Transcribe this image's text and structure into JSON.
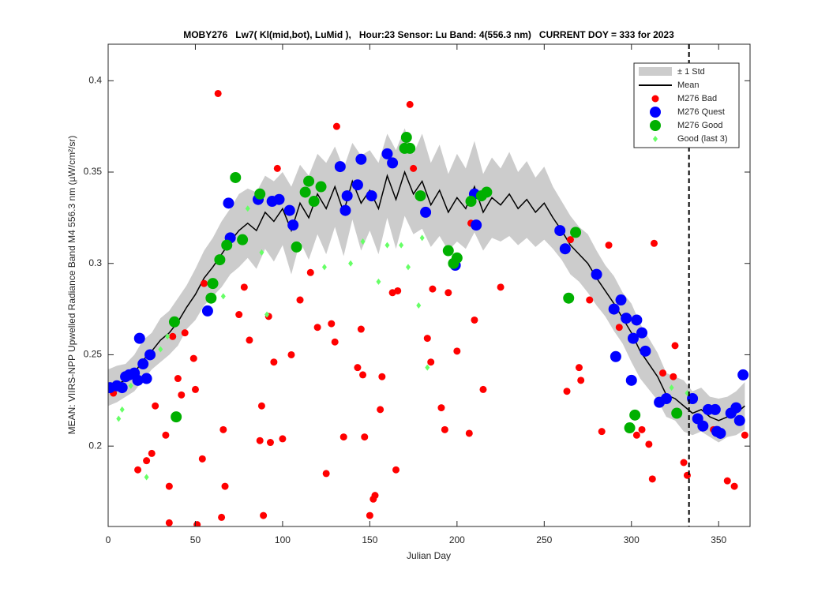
{
  "chart_data": {
    "type": "line",
    "title": "MOBY276   Lw7( Kl(mid,bot), LuMid ),   Hour:23 Sensor: Lu Band: 4(556.3 nm)   CURRENT DOY = 333 for 2023",
    "xlabel": "Julian Day",
    "ylabel": "MEAN: VIIRS-NPP Upwelled Radiance Band M4 556.3 nm (µW/cm²/sr)",
    "xlim": [
      0,
      368
    ],
    "ylim": [
      0.156,
      0.42
    ],
    "xticks": [
      0,
      50,
      100,
      150,
      200,
      250,
      300,
      350
    ],
    "yticks": [
      0.2,
      0.25,
      0.3,
      0.35,
      0.4
    ],
    "vline": 333,
    "legend": "northeast",
    "x": [
      0,
      5,
      10,
      15,
      20,
      25,
      30,
      35,
      40,
      45,
      50,
      55,
      60,
      65,
      70,
      75,
      80,
      85,
      90,
      95,
      100,
      105,
      110,
      115,
      120,
      125,
      130,
      135,
      140,
      145,
      150,
      155,
      160,
      165,
      170,
      175,
      180,
      185,
      190,
      195,
      200,
      205,
      210,
      215,
      220,
      225,
      230,
      235,
      240,
      245,
      250,
      255,
      260,
      265,
      270,
      275,
      280,
      285,
      290,
      295,
      300,
      305,
      310,
      315,
      320,
      325,
      330,
      335,
      340,
      345,
      350,
      355,
      360,
      365
    ],
    "band": {
      "name": "± 1 Std",
      "color": "#cccccc",
      "std": [
        0.01,
        0.01,
        0.009,
        0.01,
        0.011,
        0.01,
        0.012,
        0.012,
        0.013,
        0.012,
        0.014,
        0.015,
        0.016,
        0.018,
        0.018,
        0.02,
        0.019,
        0.021,
        0.02,
        0.022,
        0.02,
        0.024,
        0.021,
        0.023,
        0.022,
        0.025,
        0.022,
        0.024,
        0.021,
        0.026,
        0.022,
        0.025,
        0.023,
        0.027,
        0.024,
        0.022,
        0.026,
        0.023,
        0.025,
        0.021,
        0.024,
        0.022,
        0.025,
        0.021,
        0.022,
        0.02,
        0.023,
        0.02,
        0.021,
        0.019,
        0.02,
        0.017,
        0.016,
        0.016,
        0.015,
        0.016,
        0.015,
        0.014,
        0.015,
        0.014,
        0.016,
        0.015,
        0.014,
        0.013,
        0.012,
        0.012,
        0.014,
        0.012,
        0.012,
        0.011,
        0.012,
        0.011,
        0.012,
        0.013
      ]
    },
    "mean": {
      "name": "Mean",
      "color": "#000000",
      "values": [
        0.232,
        0.234,
        0.236,
        0.24,
        0.247,
        0.252,
        0.258,
        0.262,
        0.268,
        0.276,
        0.283,
        0.292,
        0.298,
        0.305,
        0.312,
        0.318,
        0.322,
        0.318,
        0.328,
        0.323,
        0.33,
        0.318,
        0.333,
        0.325,
        0.338,
        0.33,
        0.342,
        0.328,
        0.345,
        0.333,
        0.34,
        0.33,
        0.348,
        0.335,
        0.35,
        0.338,
        0.345,
        0.332,
        0.34,
        0.328,
        0.336,
        0.33,
        0.342,
        0.328,
        0.336,
        0.332,
        0.338,
        0.33,
        0.335,
        0.328,
        0.333,
        0.325,
        0.318,
        0.31,
        0.305,
        0.3,
        0.292,
        0.285,
        0.278,
        0.27,
        0.262,
        0.252,
        0.245,
        0.238,
        0.228,
        0.226,
        0.222,
        0.218,
        0.22,
        0.216,
        0.214,
        0.216,
        0.218,
        0.222
      ]
    },
    "series": [
      {
        "name": "M276 Bad",
        "color": "#ff0000",
        "marker": "dot",
        "x": [
          3,
          17,
          22,
          25,
          27,
          33,
          35,
          35,
          37,
          40,
          42,
          44,
          49,
          50,
          51,
          54,
          55,
          63,
          65,
          66,
          67,
          75,
          78,
          81,
          87,
          88,
          89,
          92,
          93,
          95,
          97,
          100,
          105,
          110,
          116,
          120,
          125,
          128,
          130,
          131,
          135,
          143,
          145,
          146,
          147,
          150,
          152,
          153,
          156,
          157,
          163,
          166,
          165,
          173,
          175,
          183,
          185,
          186,
          191,
          193,
          195,
          200,
          207,
          208,
          210,
          215,
          225,
          263,
          265,
          270,
          271,
          276,
          283,
          287,
          293,
          303,
          306,
          310,
          312,
          313,
          318,
          324,
          325,
          330,
          332,
          347,
          355,
          359,
          365
        ],
        "values": [
          0.229,
          0.187,
          0.192,
          0.196,
          0.222,
          0.206,
          0.178,
          0.158,
          0.26,
          0.237,
          0.228,
          0.262,
          0.248,
          0.231,
          0.157,
          0.193,
          0.289,
          0.393,
          0.161,
          0.209,
          0.178,
          0.272,
          0.287,
          0.258,
          0.203,
          0.222,
          0.162,
          0.271,
          0.202,
          0.246,
          0.352,
          0.204,
          0.25,
          0.28,
          0.295,
          0.265,
          0.185,
          0.267,
          0.257,
          0.375,
          0.205,
          0.243,
          0.264,
          0.239,
          0.205,
          0.162,
          0.171,
          0.173,
          0.22,
          0.238,
          0.284,
          0.285,
          0.187,
          0.387,
          0.352,
          0.259,
          0.246,
          0.286,
          0.221,
          0.209,
          0.284,
          0.252,
          0.207,
          0.322,
          0.269,
          0.231,
          0.287,
          0.23,
          0.313,
          0.243,
          0.236,
          0.28,
          0.208,
          0.31,
          0.265,
          0.206,
          0.209,
          0.201,
          0.182,
          0.311,
          0.24,
          0.238,
          0.255,
          0.191,
          0.184,
          0.209,
          0.181,
          0.178,
          0.206
        ]
      },
      {
        "name": "M276 Quest",
        "color": "#0000ff",
        "marker": "big",
        "x": [
          1,
          5,
          8,
          10,
          12,
          15,
          17,
          18,
          20,
          22,
          24,
          57,
          69,
          70,
          86,
          94,
          98,
          104,
          106,
          133,
          137,
          136,
          143,
          145,
          151,
          160,
          163,
          182,
          199,
          210,
          211,
          259,
          262,
          280,
          290,
          291,
          294,
          297,
          300,
          301,
          303,
          306,
          308,
          316,
          320,
          335,
          338,
          341,
          344,
          348,
          349,
          351,
          357,
          360,
          362,
          364
        ],
        "values": [
          0.232,
          0.233,
          0.232,
          0.238,
          0.239,
          0.24,
          0.236,
          0.259,
          0.245,
          0.237,
          0.25,
          0.274,
          0.333,
          0.314,
          0.335,
          0.334,
          0.335,
          0.329,
          0.321,
          0.353,
          0.337,
          0.329,
          0.343,
          0.357,
          0.337,
          0.36,
          0.355,
          0.328,
          0.299,
          0.338,
          0.321,
          0.318,
          0.308,
          0.294,
          0.275,
          0.249,
          0.28,
          0.27,
          0.236,
          0.259,
          0.269,
          0.262,
          0.252,
          0.224,
          0.226,
          0.226,
          0.215,
          0.211,
          0.22,
          0.22,
          0.208,
          0.207,
          0.218,
          0.221,
          0.214,
          0.239
        ]
      },
      {
        "name": "M276 Good",
        "color": "#00b000",
        "marker": "big",
        "x": [
          39,
          38,
          59,
          60,
          64,
          68,
          73,
          77,
          87,
          108,
          113,
          115,
          118,
          122,
          170,
          171,
          173,
          179,
          195,
          198,
          200,
          208,
          214,
          217,
          264,
          268,
          299,
          302,
          326
        ],
        "values": [
          0.216,
          0.268,
          0.281,
          0.289,
          0.302,
          0.31,
          0.347,
          0.313,
          0.338,
          0.309,
          0.339,
          0.345,
          0.334,
          0.342,
          0.363,
          0.369,
          0.363,
          0.337,
          0.307,
          0.3,
          0.303,
          0.334,
          0.337,
          0.339,
          0.281,
          0.317,
          0.21,
          0.217,
          0.218
        ]
      },
      {
        "name": "Good (last 3)",
        "color": "#66ff66",
        "marker": "diamond",
        "x": [
          6,
          8,
          13,
          22,
          30,
          34,
          66,
          80,
          88,
          91,
          124,
          139,
          146,
          155,
          160,
          168,
          172,
          178,
          180,
          183,
          323,
          332
        ],
        "values": [
          0.215,
          0.22,
          0.233,
          0.183,
          0.253,
          0.26,
          0.282,
          0.33,
          0.306,
          0.272,
          0.298,
          0.3,
          0.312,
          0.29,
          0.31,
          0.31,
          0.298,
          0.277,
          0.314,
          0.243,
          0.232,
          0.229
        ]
      }
    ]
  }
}
